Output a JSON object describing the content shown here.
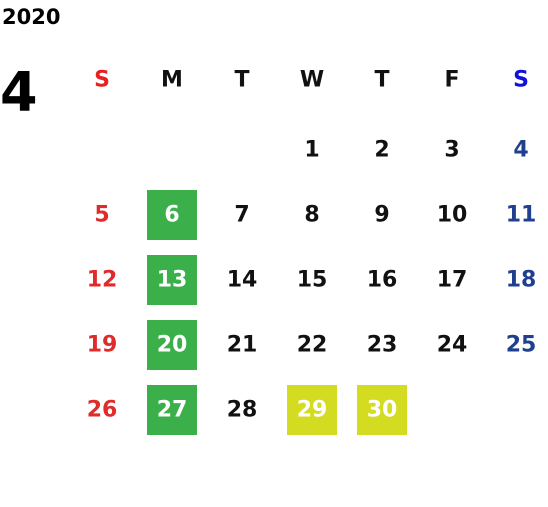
{
  "header": {
    "year": "2020",
    "month": "4"
  },
  "weekdays": [
    "S",
    "M",
    "T",
    "W",
    "T",
    "F",
    "S"
  ],
  "weekday_colors": [
    "#e52222",
    "#111111",
    "#111111",
    "#111111",
    "#111111",
    "#111111",
    "#1010e0"
  ],
  "day_colors": [
    "#e02b2b",
    "#111111",
    "#111111",
    "#111111",
    "#111111",
    "#111111",
    "#1f3f8f"
  ],
  "weeks": [
    [
      null,
      null,
      null,
      "1",
      "2",
      "3",
      "4"
    ],
    [
      "5",
      {
        "label": "6",
        "fill": "#3bb04a"
      },
      "7",
      "8",
      "9",
      "10",
      "11"
    ],
    [
      "12",
      {
        "label": "13",
        "fill": "#3bb04a"
      },
      "14",
      "15",
      "16",
      "17",
      "18"
    ],
    [
      "19",
      {
        "label": "20",
        "fill": "#3bb04a"
      },
      "21",
      "22",
      "23",
      "24",
      "25"
    ],
    [
      "26",
      {
        "label": "27",
        "fill": "#3bb04a"
      },
      "28",
      {
        "label": "29",
        "fill": "#d4dc22"
      },
      {
        "label": "30",
        "fill": "#d4dc22"
      },
      null,
      null
    ]
  ]
}
